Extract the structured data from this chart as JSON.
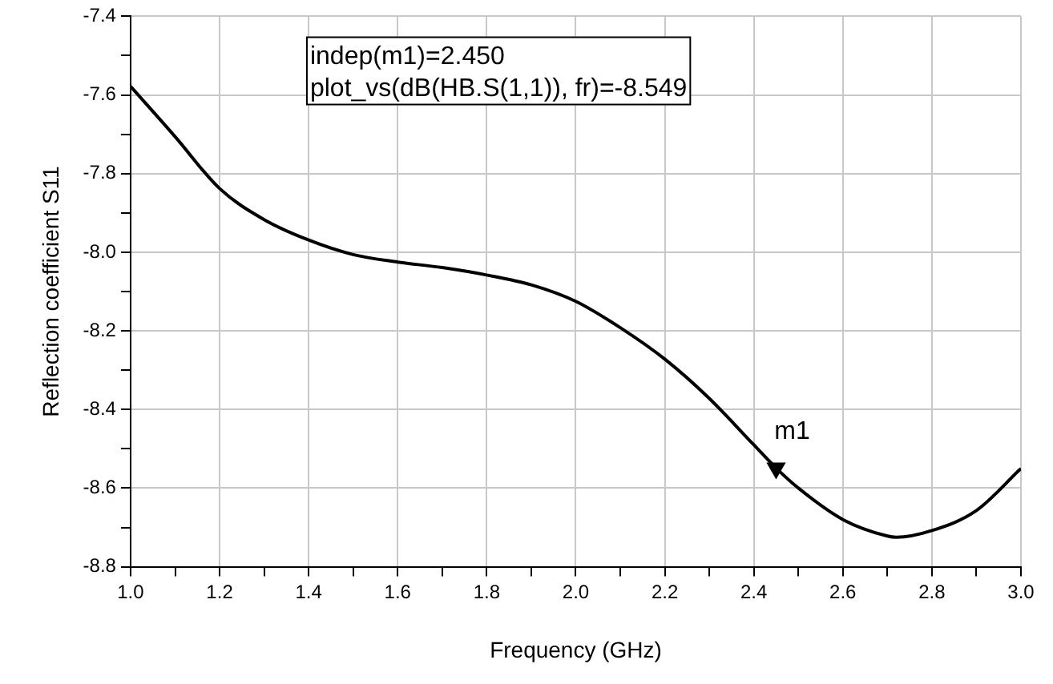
{
  "chart_data": {
    "type": "line",
    "xlabel": "Frequency (GHz)",
    "ylabel": "Reflection coefficient S11",
    "x": [
      1.0,
      1.1,
      1.2,
      1.3,
      1.4,
      1.5,
      1.6,
      1.7,
      1.8,
      1.9,
      2.0,
      2.1,
      2.2,
      2.3,
      2.4,
      2.45,
      2.5,
      2.6,
      2.7,
      2.72,
      2.8,
      2.9,
      3.0
    ],
    "series": [
      {
        "color": "#000000",
        "values": [
          -7.578,
          -7.706,
          -7.838,
          -7.917,
          -7.969,
          -8.006,
          -8.025,
          -8.039,
          -8.058,
          -8.083,
          -8.125,
          -8.192,
          -8.272,
          -8.372,
          -8.49,
          -8.549,
          -8.6,
          -8.68,
          -8.722,
          -8.725,
          -8.708,
          -8.657,
          -8.55
        ]
      },
      {
        "type": "scatter",
        "x": [
          2.45
        ],
        "values": [
          -8.549
        ],
        "color": "#000000",
        "marker": "triangle"
      }
    ],
    "xlim": [
      1.0,
      3.0
    ],
    "xticks": [
      {
        "value": 1,
        "label": "1.0"
      },
      {
        "value": 1.1,
        "label": null
      },
      1.2,
      {
        "value": 1.3,
        "label": null
      },
      1.4,
      {
        "value": 1.5,
        "label": null
      },
      1.6,
      {
        "value": 1.7,
        "label": null
      },
      1.8,
      {
        "value": 1.9,
        "label": null
      },
      {
        "value": 2,
        "label": "2.0"
      },
      {
        "value": 2.1,
        "label": null
      },
      2.2,
      {
        "value": 2.3,
        "label": null
      },
      2.4,
      {
        "value": 2.5,
        "label": null
      },
      2.6,
      {
        "value": 2.7,
        "label": null
      },
      2.8,
      {
        "value": 2.9,
        "label": null
      },
      {
        "value": 3,
        "label": "3.0"
      }
    ],
    "ylim": [
      -8.8,
      -7.4
    ],
    "yticks": [
      -7.4,
      {
        "value": -7.5,
        "label": null
      },
      -7.6,
      {
        "value": -7.7,
        "label": null
      },
      -7.8,
      {
        "value": -7.9,
        "label": null
      },
      {
        "value": -8,
        "label": "-8.0"
      },
      {
        "value": -8.1,
        "label": null
      },
      -8.2,
      {
        "value": -8.3,
        "label": null
      },
      -8.4,
      {
        "value": -8.5,
        "label": null
      },
      -8.6,
      {
        "value": -8.7,
        "label": null
      },
      -8.8
    ],
    "annotations": [
      "indep(m1)=2.450",
      "plot_vs(dB(HB.S(1,1)), fr)=-8.549",
      {
        "text": "m1",
        "x": 2.45,
        "y": -8.549
      }
    ],
    "grid": true,
    "legend": false,
    "marker": "none",
    "line_style": "solid"
  }
}
